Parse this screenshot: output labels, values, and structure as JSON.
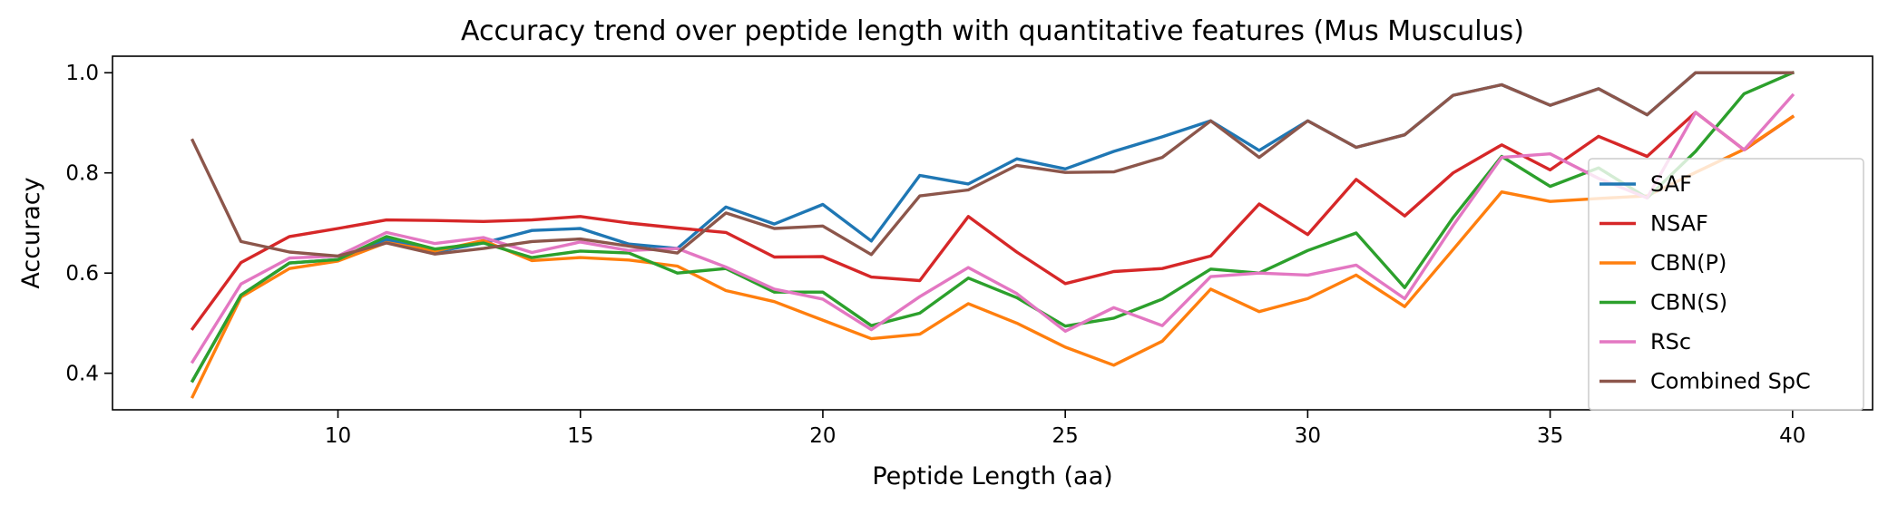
{
  "chart_data": {
    "type": "line",
    "title": "Accuracy trend over peptide length with quantitative features (Mus Musculus)",
    "xlabel": "Peptide Length (aa)",
    "ylabel": "Accuracy",
    "xlim": [
      5.35,
      41.65
    ],
    "ylim": [
      0.327,
      1.033
    ],
    "xticks": [
      10,
      15,
      20,
      25,
      30,
      35,
      40
    ],
    "yticks": [
      0.4,
      0.6,
      0.8,
      1.0
    ],
    "xtick_labels": [
      "10",
      "15",
      "20",
      "25",
      "30",
      "35",
      "40"
    ],
    "ytick_labels": [
      "0.4",
      "0.6",
      "0.8",
      "1.0"
    ],
    "grid": false,
    "legend_position": "lower-right",
    "x": [
      7,
      8,
      9,
      10,
      11,
      12,
      13,
      14,
      15,
      16,
      17,
      18,
      19,
      20,
      21,
      22,
      23,
      24,
      25,
      26,
      27,
      28,
      29,
      30,
      31,
      32,
      33,
      34,
      35,
      36,
      37,
      38,
      39,
      40
    ],
    "series": [
      {
        "name": "SAF",
        "color": "#1f77b4",
        "values": [
          0.385,
          0.556,
          0.62,
          0.627,
          0.667,
          0.642,
          0.66,
          0.685,
          0.689,
          0.658,
          0.649,
          0.732,
          0.698,
          0.737,
          0.664,
          0.795,
          0.778,
          0.828,
          0.808,
          0.843,
          0.872,
          0.904,
          0.845,
          0.904,
          0.851,
          0.876,
          0.955,
          0.976,
          0.935,
          0.968,
          0.916,
          1.0,
          1.0,
          1.0
        ]
      },
      {
        "name": "NSAF",
        "color": "#d62728",
        "values": [
          0.489,
          0.621,
          0.673,
          0.689,
          0.706,
          0.705,
          0.703,
          0.706,
          0.713,
          0.7,
          0.69,
          0.681,
          0.632,
          0.633,
          0.592,
          0.585,
          0.713,
          0.642,
          0.579,
          0.603,
          0.609,
          0.634,
          0.738,
          0.677,
          0.787,
          0.714,
          0.8,
          0.856,
          0.806,
          0.873,
          0.833,
          0.921,
          0.846,
          0.912
        ]
      },
      {
        "name": "CBN(P)",
        "color": "#ff7f0e",
        "values": [
          0.353,
          0.552,
          0.609,
          0.624,
          0.661,
          0.644,
          0.665,
          0.625,
          0.631,
          0.626,
          0.614,
          0.565,
          0.543,
          0.506,
          0.469,
          0.478,
          0.539,
          0.5,
          0.452,
          0.416,
          0.464,
          0.568,
          0.523,
          0.549,
          0.596,
          0.533,
          0.647,
          0.762,
          0.743,
          0.749,
          0.754,
          0.801,
          0.847,
          0.912
        ]
      },
      {
        "name": "CBN(S)",
        "color": "#2ca02c",
        "values": [
          0.385,
          0.556,
          0.62,
          0.627,
          0.673,
          0.648,
          0.66,
          0.631,
          0.644,
          0.64,
          0.6,
          0.609,
          0.562,
          0.562,
          0.495,
          0.52,
          0.59,
          0.551,
          0.494,
          0.51,
          0.548,
          0.608,
          0.6,
          0.645,
          0.68,
          0.571,
          0.711,
          0.833,
          0.773,
          0.81,
          0.75,
          0.843,
          0.958,
          1.0
        ]
      },
      {
        "name": "RSc",
        "color": "#e377c2",
        "values": [
          0.423,
          0.578,
          0.63,
          0.634,
          0.681,
          0.659,
          0.671,
          0.641,
          0.662,
          0.645,
          0.649,
          0.612,
          0.568,
          0.548,
          0.487,
          0.553,
          0.611,
          0.559,
          0.484,
          0.531,
          0.495,
          0.593,
          0.6,
          0.596,
          0.616,
          0.549,
          0.695,
          0.831,
          0.838,
          0.789,
          0.75,
          0.921,
          0.846,
          0.955
        ]
      },
      {
        "name": "Combined SpC",
        "color": "#8c564b",
        "values": [
          0.865,
          0.663,
          0.642,
          0.634,
          0.66,
          0.638,
          0.649,
          0.663,
          0.668,
          0.654,
          0.64,
          0.72,
          0.689,
          0.694,
          0.637,
          0.754,
          0.766,
          0.815,
          0.801,
          0.802,
          0.831,
          0.904,
          0.831,
          0.904,
          0.851,
          0.876,
          0.955,
          0.976,
          0.935,
          0.968,
          0.916,
          1.0,
          1.0,
          1.0
        ]
      }
    ]
  }
}
